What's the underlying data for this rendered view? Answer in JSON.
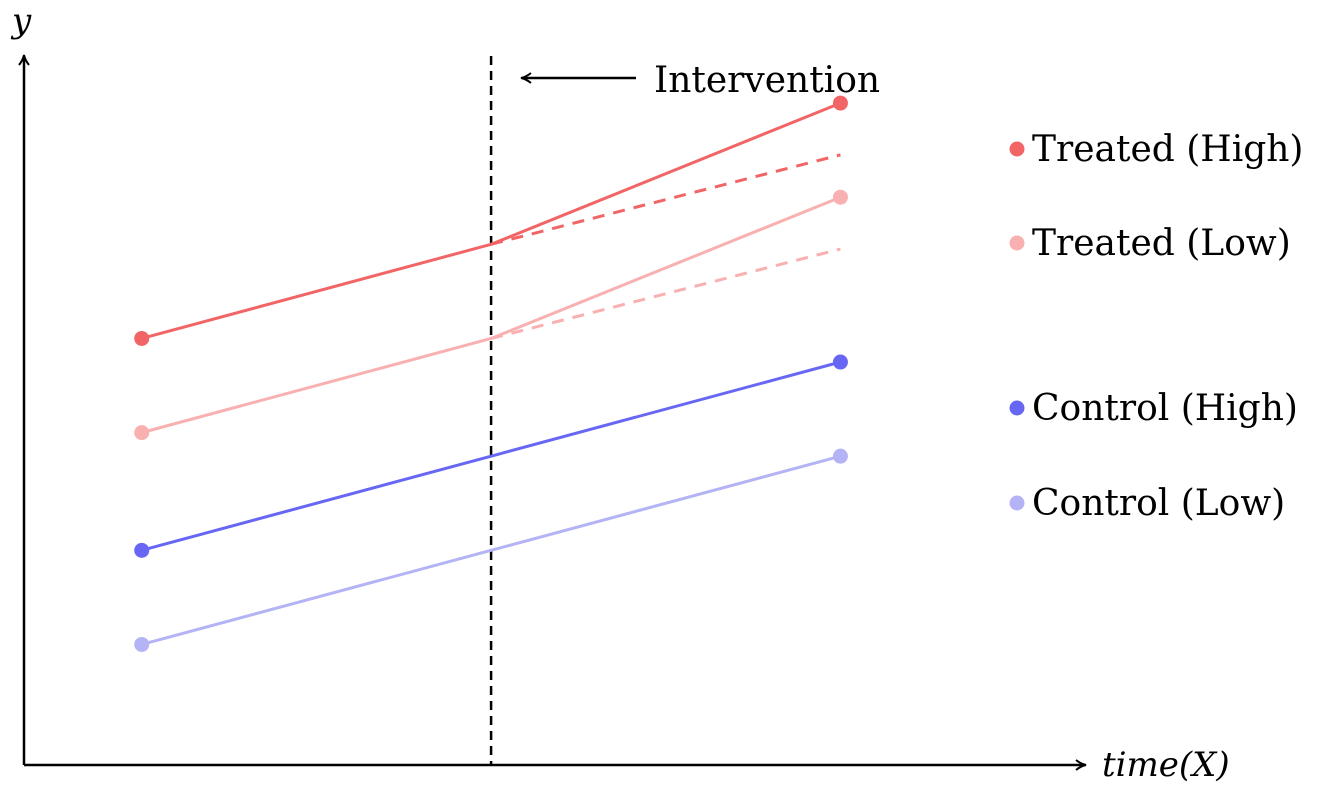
{
  "chart_data": {
    "type": "line",
    "xlabel": "time(X)",
    "ylabel": "y",
    "x": [
      0,
      1,
      2
    ],
    "xlim": [
      -0.337,
      2.7
    ],
    "ylim": [
      -1.53,
      6.0
    ],
    "grid": false,
    "legend_position": "right",
    "intervention": {
      "x": 1,
      "label": "Intervention"
    },
    "series": [
      {
        "name": "Treated (High)",
        "color": "#f26566",
        "values": [
          3.0,
          4.0,
          5.5
        ],
        "counterfactual": [
          4.0,
          4.95
        ]
      },
      {
        "name": "Treated (Low)",
        "color": "#f9b0b0",
        "values": [
          2.0,
          3.0,
          4.5
        ],
        "counterfactual": [
          3.0,
          3.95
        ]
      },
      {
        "name": "Control (High)",
        "color": "#6767f4",
        "values": [
          0.75,
          1.75,
          2.75
        ]
      },
      {
        "name": "Control (Low)",
        "color": "#b3b3f6",
        "values": [
          -0.25,
          0.75,
          1.75
        ]
      }
    ]
  }
}
